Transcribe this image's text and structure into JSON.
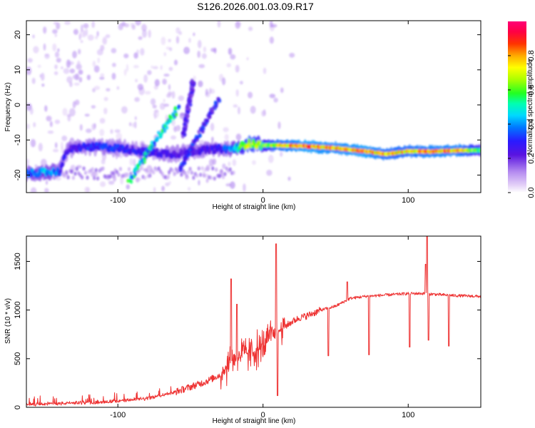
{
  "title": "S126.2026.001.03.09.R17",
  "chart_data": [
    {
      "type": "heatmap",
      "name": "spectrogram",
      "xlabel": "Height of straight line (km)",
      "ylabel": "Frequency (Hz)",
      "xlim": [
        -163,
        150
      ],
      "ylim": [
        -25,
        24
      ],
      "xticks": [
        -100,
        0,
        100
      ],
      "yticks": [
        -20,
        -10,
        0,
        10,
        20
      ],
      "colorbar": {
        "label": "Normalized spectral amplitude",
        "range": [
          0.0,
          1.0
        ],
        "ticks": [
          0.0,
          0.2,
          0.4,
          0.6,
          0.8
        ],
        "tick_labels": [
          "0.0",
          "0.2",
          "0.4",
          "0.6",
          "0.8"
        ],
        "colormap": [
          "#ffffff",
          "#e4d0f8",
          "#b58cf0",
          "#6a2be0",
          "#3d00d6",
          "#0033ff",
          "#00aaff",
          "#00eec0",
          "#33ff33",
          "#aaff00",
          "#ffff00",
          "#ffaa00",
          "#ff3300",
          "#ff0044",
          "#ff0077"
        ]
      },
      "ridge_track": [
        {
          "x": -163,
          "y": -19.5,
          "v": 0.35
        },
        {
          "x": -150,
          "y": -19.2,
          "v": 0.45
        },
        {
          "x": -140,
          "y": -19.0,
          "v": 0.35
        },
        {
          "x": -135,
          "y": -13.0,
          "v": 0.25
        },
        {
          "x": -125,
          "y": -12.0,
          "v": 0.3
        },
        {
          "x": -110,
          "y": -12.0,
          "v": 0.35
        },
        {
          "x": -95,
          "y": -12.5,
          "v": 0.3
        },
        {
          "x": -80,
          "y": -13.5,
          "v": 0.3
        },
        {
          "x": -60,
          "y": -14.0,
          "v": 0.25
        },
        {
          "x": -45,
          "y": -13.0,
          "v": 0.25
        },
        {
          "x": -30,
          "y": -12.5,
          "v": 0.3
        },
        {
          "x": -20,
          "y": -12.5,
          "v": 0.45
        },
        {
          "x": -10,
          "y": -11.0,
          "v": 0.75
        },
        {
          "x": 0,
          "y": -11.5,
          "v": 0.6
        },
        {
          "x": 10,
          "y": -11.5,
          "v": 0.8
        },
        {
          "x": 30,
          "y": -11.8,
          "v": 0.9
        },
        {
          "x": 50,
          "y": -12.3,
          "v": 0.85
        },
        {
          "x": 70,
          "y": -13.2,
          "v": 0.9
        },
        {
          "x": 85,
          "y": -14.0,
          "v": 0.8
        },
        {
          "x": 100,
          "y": -13.2,
          "v": 0.8
        },
        {
          "x": 115,
          "y": -13.3,
          "v": 0.85
        },
        {
          "x": 135,
          "y": -13.0,
          "v": 0.85
        },
        {
          "x": 150,
          "y": -13.0,
          "v": 0.6
        }
      ],
      "diagonal_streaks": [
        {
          "from": [
            -92,
            -21.5
          ],
          "to": [
            -58,
            -0.5
          ],
          "v": 0.5
        },
        {
          "from": [
            -57,
            -18.0
          ],
          "to": [
            -30,
            2.0
          ],
          "v": 0.3
        },
        {
          "from": [
            -55,
            -9.0
          ],
          "to": [
            -48,
            7.0
          ],
          "v": 0.25
        }
      ]
    },
    {
      "type": "line",
      "name": "snr",
      "xlabel": "Height of straight line (km)",
      "ylabel": "SNR (10 * v/v)",
      "xlim": [
        -163,
        150
      ],
      "ylim": [
        0,
        1760
      ],
      "xticks": [
        -100,
        0,
        100
      ],
      "yticks": [
        0,
        500,
        1000,
        1500
      ],
      "series": [
        {
          "name": "SNR",
          "color": "#ee3333",
          "x": [
            -163,
            -140,
            -120,
            -100,
            -80,
            -60,
            -50,
            -40,
            -30,
            -25,
            -20,
            -15,
            -10,
            -5,
            0,
            5,
            10,
            15,
            20,
            25,
            30,
            40,
            50,
            55,
            60,
            70,
            80,
            90,
            100,
            110,
            120,
            130,
            140,
            150
          ],
          "y": [
            30,
            40,
            50,
            65,
            90,
            160,
            210,
            260,
            330,
            420,
            520,
            540,
            560,
            580,
            620,
            720,
            780,
            830,
            880,
            920,
            940,
            1000,
            1040,
            1080,
            1120,
            1140,
            1150,
            1160,
            1170,
            1170,
            1160,
            1150,
            1145,
            1140
          ]
        }
      ],
      "spikes": [
        {
          "x": -22,
          "y": 1320
        },
        {
          "x": -18,
          "y": 1060
        },
        {
          "x": 9,
          "y": 1680
        },
        {
          "x": 10,
          "y": 120
        },
        {
          "x": 58,
          "y": 1290
        },
        {
          "x": 45,
          "y": 530
        },
        {
          "x": 73,
          "y": 540
        },
        {
          "x": 101,
          "y": 620
        },
        {
          "x": 112,
          "y": 1470
        },
        {
          "x": 113,
          "y": 1760
        },
        {
          "x": 114,
          "y": 690
        },
        {
          "x": 128,
          "y": 630
        }
      ]
    }
  ]
}
